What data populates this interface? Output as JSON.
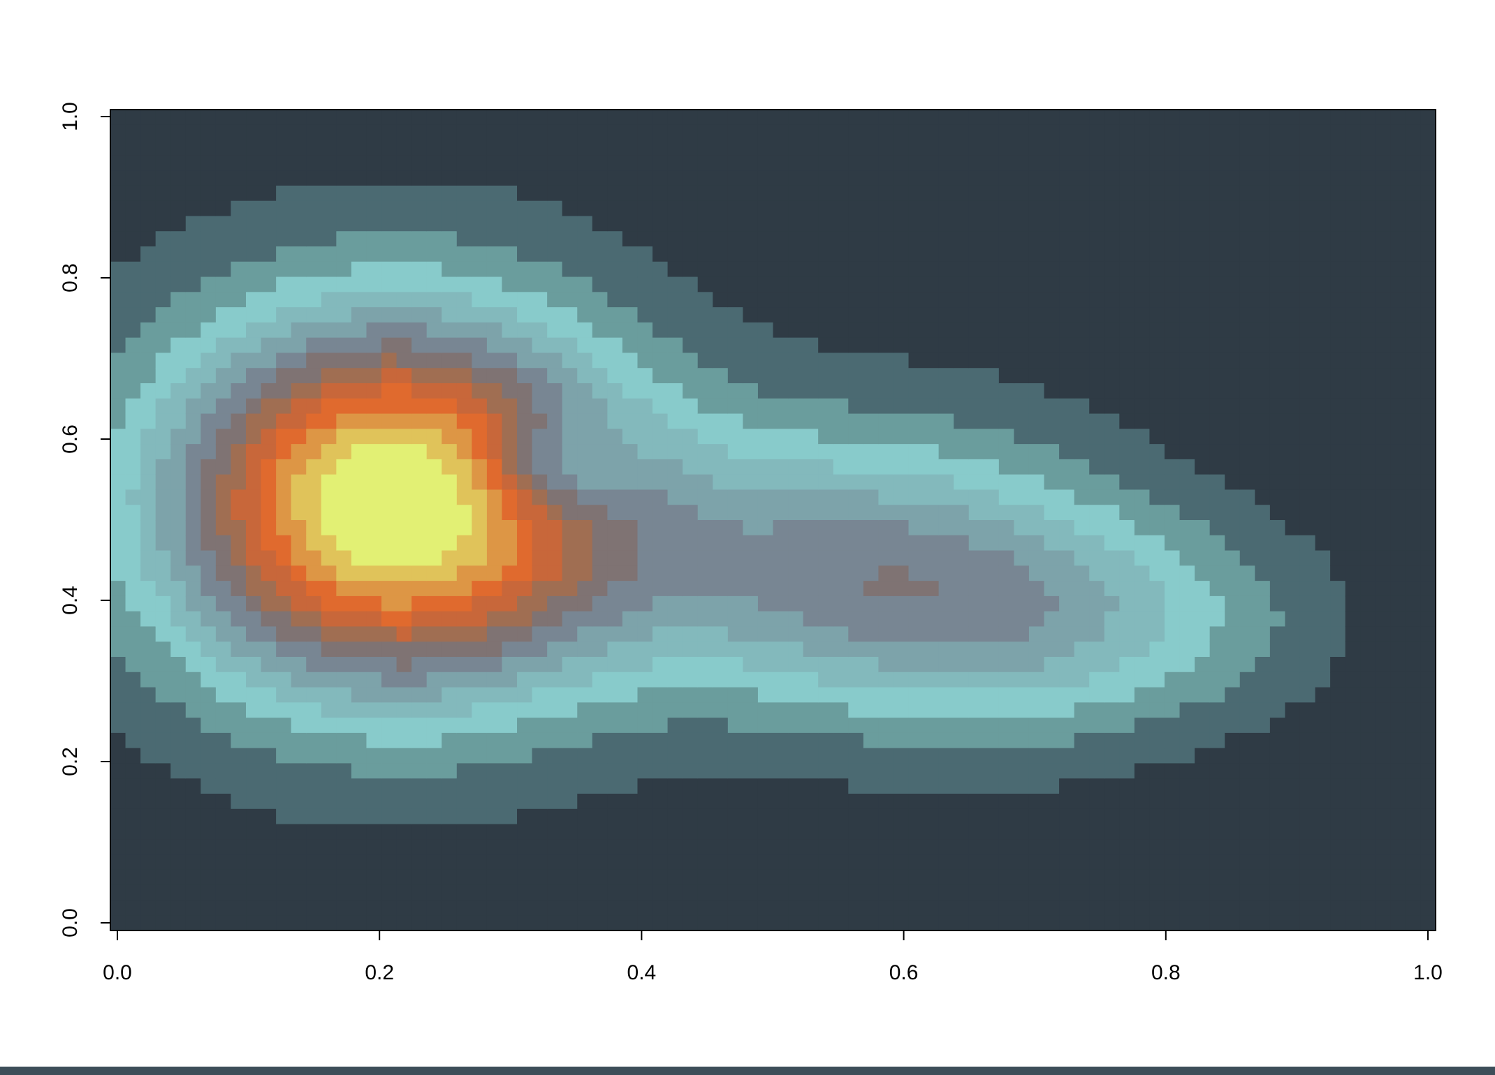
{
  "chart_data": {
    "type": "heatmap",
    "title": "",
    "xlabel": "",
    "ylabel": "",
    "xlim": [
      0.0,
      1.0
    ],
    "ylim": [
      0.0,
      1.0
    ],
    "x_ticks": [
      "0.0",
      "0.2",
      "0.4",
      "0.6",
      "0.8",
      "1.0"
    ],
    "y_ticks": [
      "0.0",
      "0.2",
      "0.4",
      "0.6",
      "0.8",
      "1.0"
    ],
    "grid": false,
    "legend": "none",
    "color_levels": [
      {
        "level": 1,
        "color": "#2f3b45"
      },
      {
        "level": 2,
        "color": "#4b6a72"
      },
      {
        "level": 3,
        "color": "#6a9d9d"
      },
      {
        "level": 4,
        "color": "#88cbcb"
      },
      {
        "level": 5,
        "color": "#83b9bc"
      },
      {
        "level": 6,
        "color": "#7da3aa"
      },
      {
        "level": 7,
        "color": "#788693"
      },
      {
        "level": 8,
        "color": "#7f7373"
      },
      {
        "level": 9,
        "color": "#a06e52"
      },
      {
        "level": 10,
        "color": "#c8673a"
      },
      {
        "level": 11,
        "color": "#e06a2e"
      },
      {
        "level": 12,
        "color": "#dd9645"
      },
      {
        "level": 13,
        "color": "#e0c35a"
      },
      {
        "level": 14,
        "color": "#e2f074"
      }
    ],
    "peaks": [
      {
        "x": 0.21,
        "y": 0.52,
        "value": 1.0,
        "sx": 0.12,
        "sy": 0.16
      },
      {
        "x": 0.55,
        "y": 0.45,
        "value": 0.35,
        "sx": 0.14,
        "sy": 0.12
      },
      {
        "x": 0.72,
        "y": 0.37,
        "value": 0.25,
        "sx": 0.14,
        "sy": 0.1
      },
      {
        "x": 0.33,
        "y": 0.56,
        "value": -0.22,
        "sx": 0.04,
        "sy": 0.045
      }
    ],
    "background_level": 0.03
  }
}
